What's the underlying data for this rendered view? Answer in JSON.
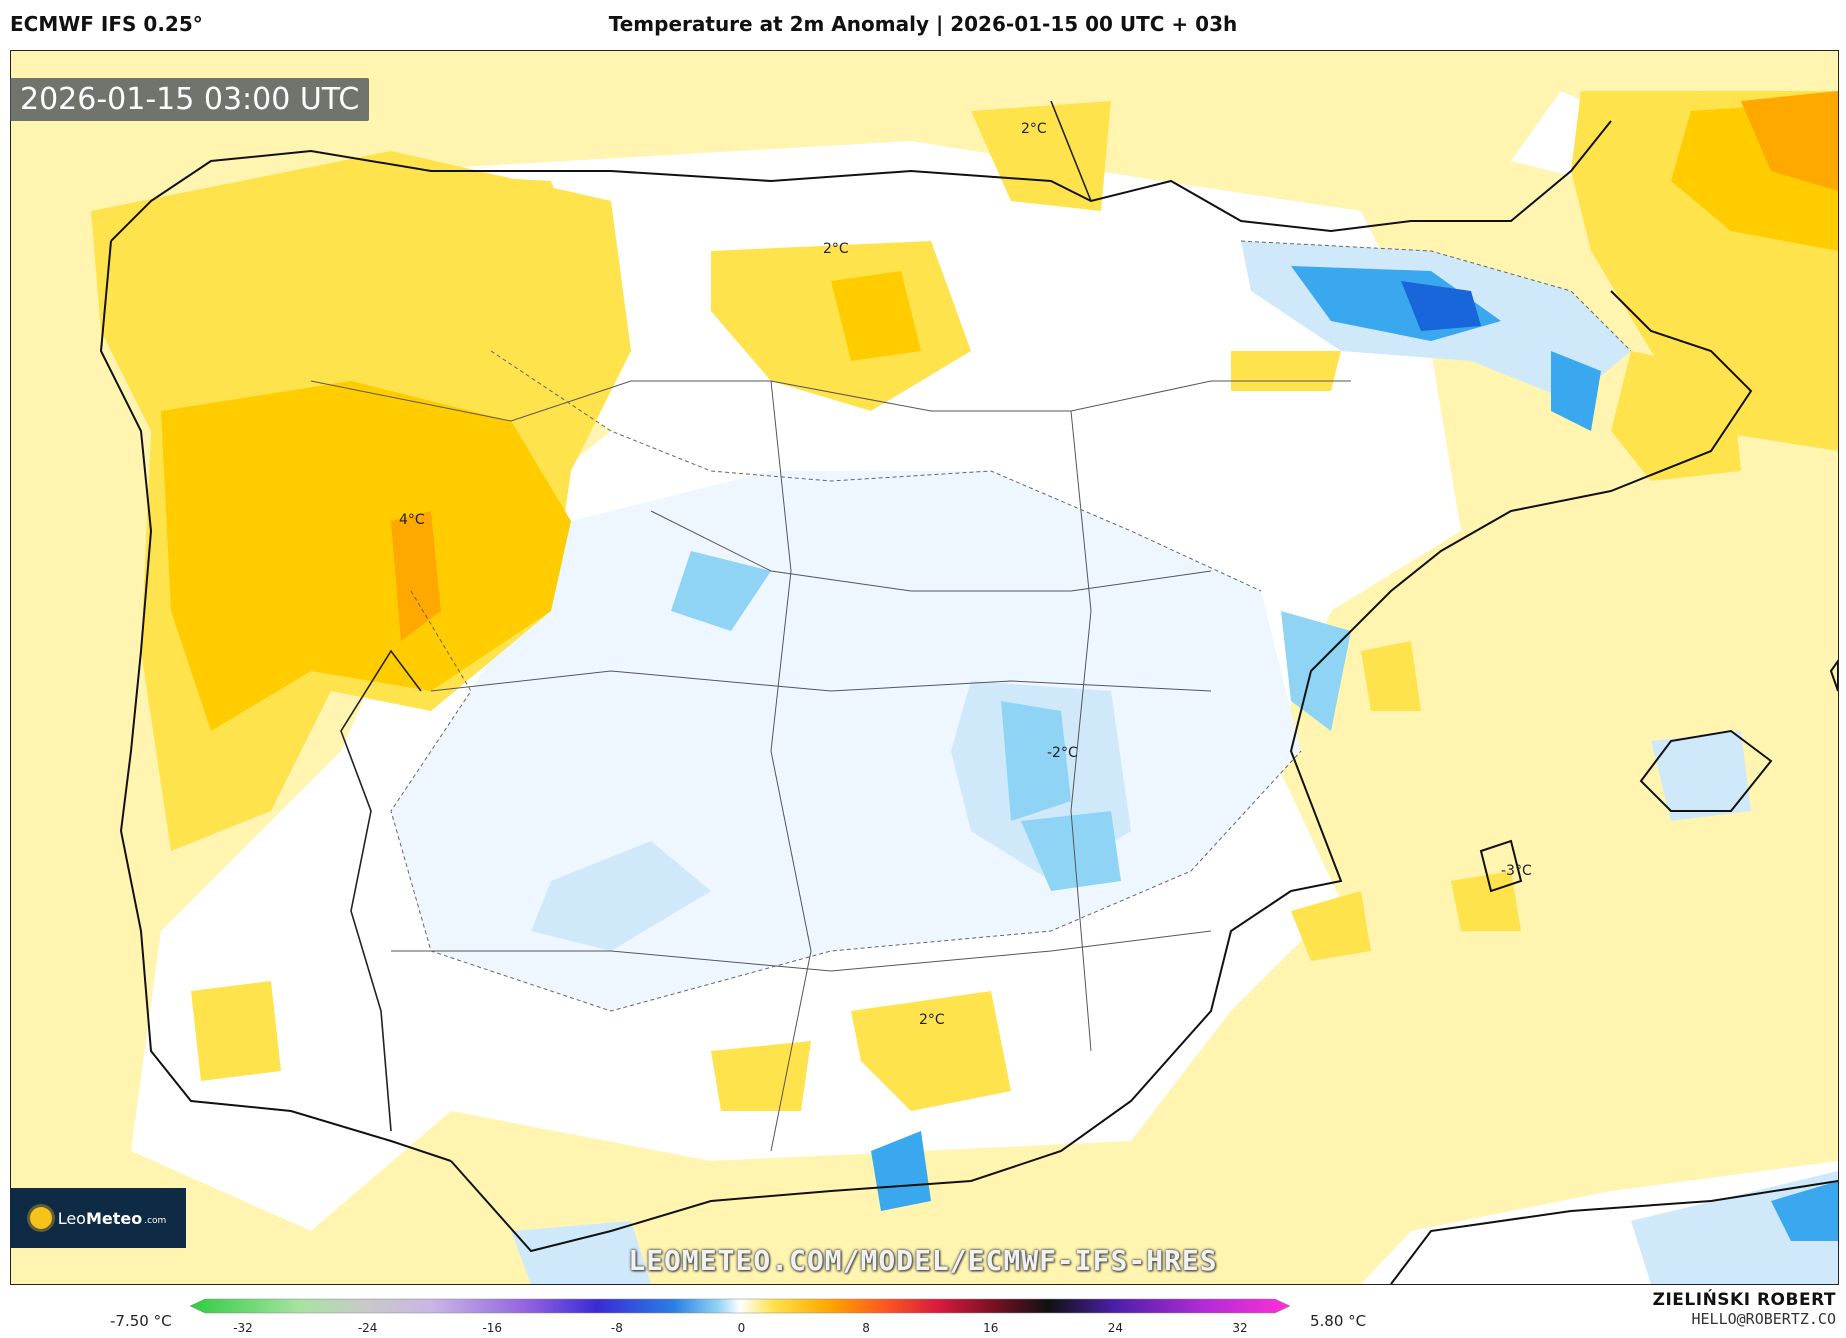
{
  "header": {
    "model": "ECMWF IFS 0.25°",
    "title": "Temperature at 2m Anomaly | 2026-01-15 00 UTC + 03h"
  },
  "valid_time": "2026-01-15 03:00 UTC",
  "watermark_url": "LEOMETEO.COM/MODEL/ECMWF-IFS-HRES",
  "logo": {
    "brand_light": "Leo",
    "brand_bold": "Meteo",
    "suffix": ".com"
  },
  "credits": {
    "author": "ZIELIŃSKI ROBERT",
    "email": "HELLO@ROBERTZ.CO"
  },
  "colorbar": {
    "min_label": "-7.50 °C",
    "max_label": "5.80 °C",
    "ticks": [
      "-32",
      "-24",
      "-16",
      "-8",
      "0",
      "8",
      "16",
      "24",
      "32"
    ]
  },
  "contour_labels": [
    {
      "text": "2°C"
    },
    {
      "text": "2°C"
    },
    {
      "text": "4°C"
    },
    {
      "text": "-2°C"
    },
    {
      "text": "2°C"
    },
    {
      "text": "-3°C"
    }
  ],
  "colors": {
    "warm_1": "#fff5b0",
    "warm_2": "#ffe34d",
    "warm_3": "#ffcc00",
    "warm_4": "#ffa800",
    "cool_1": "#eef7ff",
    "cool_2": "#cfe9fb",
    "cool_3": "#8fd4f5",
    "cool_4": "#39a8ee",
    "cool_5": "#1866d9",
    "neutral": "#ffffff"
  }
}
